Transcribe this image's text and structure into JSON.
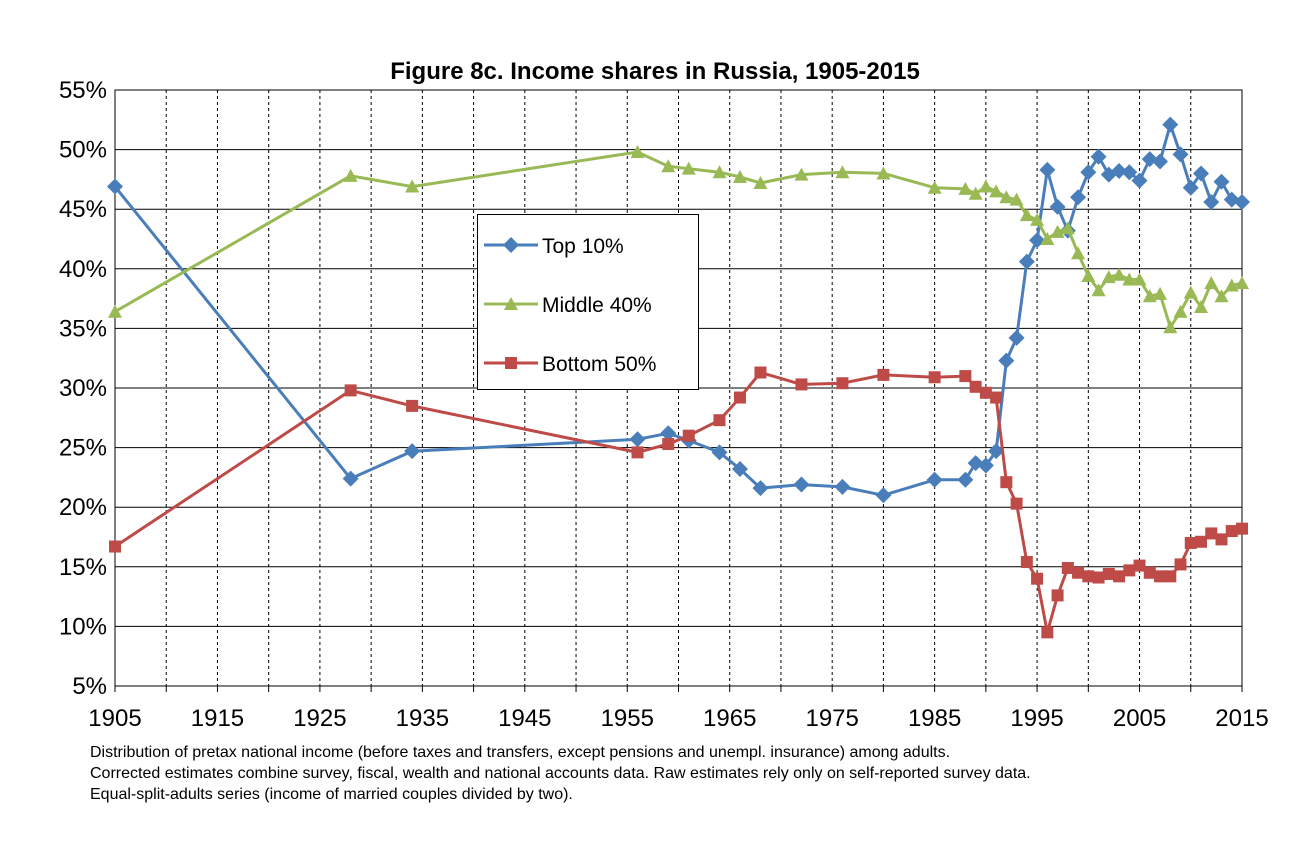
{
  "chart_data": {
    "type": "line",
    "title": "Figure 8c. Income shares in Russia, 1905-2015",
    "xlabel": "",
    "ylabel": "",
    "xlim": [
      1905,
      2015
    ],
    "ylim": [
      0.05,
      0.55
    ],
    "x_ticks": [
      "1905",
      "1915",
      "1925",
      "1935",
      "1945",
      "1955",
      "1965",
      "1975",
      "1985",
      "1995",
      "2005",
      "2015"
    ],
    "y_ticks": [
      "5%",
      "10%",
      "15%",
      "20%",
      "25%",
      "30%",
      "35%",
      "40%",
      "45%",
      "50%",
      "55%"
    ],
    "grid": true,
    "legend_position": "center",
    "series": [
      {
        "name": "Top 10%",
        "color": "#4a7ebb",
        "marker": "diamond",
        "points": [
          [
            1905,
            0.469
          ],
          [
            1928,
            0.224
          ],
          [
            1934,
            0.247
          ],
          [
            1956,
            0.257
          ],
          [
            1959,
            0.262
          ],
          [
            1961,
            0.256
          ],
          [
            1964,
            0.246
          ],
          [
            1966,
            0.232
          ],
          [
            1968,
            0.216
          ],
          [
            1972,
            0.219
          ],
          [
            1976,
            0.217
          ],
          [
            1980,
            0.21
          ],
          [
            1985,
            0.223
          ],
          [
            1988,
            0.223
          ],
          [
            1989,
            0.237
          ],
          [
            1990,
            0.235
          ],
          [
            1991,
            0.247
          ],
          [
            1992,
            0.323
          ],
          [
            1993,
            0.342
          ],
          [
            1994,
            0.406
          ],
          [
            1995,
            0.424
          ],
          [
            1996,
            0.483
          ],
          [
            1997,
            0.452
          ],
          [
            1998,
            0.432
          ],
          [
            1999,
            0.46
          ],
          [
            2000,
            0.481
          ],
          [
            2001,
            0.494
          ],
          [
            2002,
            0.479
          ],
          [
            2003,
            0.482
          ],
          [
            2004,
            0.481
          ],
          [
            2005,
            0.474
          ],
          [
            2006,
            0.492
          ],
          [
            2007,
            0.49
          ],
          [
            2008,
            0.521
          ],
          [
            2009,
            0.496
          ],
          [
            2010,
            0.468
          ],
          [
            2011,
            0.48
          ],
          [
            2012,
            0.456
          ],
          [
            2013,
            0.473
          ],
          [
            2014,
            0.458
          ],
          [
            2015,
            0.456
          ]
        ]
      },
      {
        "name": "Middle 40%",
        "color": "#98b954",
        "marker": "triangle",
        "points": [
          [
            1905,
            0.364
          ],
          [
            1928,
            0.478
          ],
          [
            1934,
            0.469
          ],
          [
            1956,
            0.498
          ],
          [
            1959,
            0.486
          ],
          [
            1961,
            0.484
          ],
          [
            1964,
            0.481
          ],
          [
            1966,
            0.477
          ],
          [
            1968,
            0.472
          ],
          [
            1972,
            0.479
          ],
          [
            1976,
            0.481
          ],
          [
            1980,
            0.48
          ],
          [
            1985,
            0.468
          ],
          [
            1988,
            0.467
          ],
          [
            1989,
            0.463
          ],
          [
            1990,
            0.469
          ],
          [
            1991,
            0.465
          ],
          [
            1992,
            0.46
          ],
          [
            1993,
            0.458
          ],
          [
            1994,
            0.445
          ],
          [
            1995,
            0.441
          ],
          [
            1996,
            0.425
          ],
          [
            1997,
            0.431
          ],
          [
            1998,
            0.434
          ],
          [
            1999,
            0.413
          ],
          [
            2000,
            0.394
          ],
          [
            2001,
            0.382
          ],
          [
            2002,
            0.393
          ],
          [
            2003,
            0.395
          ],
          [
            2004,
            0.391
          ],
          [
            2005,
            0.391
          ],
          [
            2006,
            0.377
          ],
          [
            2007,
            0.379
          ],
          [
            2008,
            0.351
          ],
          [
            2009,
            0.364
          ],
          [
            2010,
            0.38
          ],
          [
            2011,
            0.368
          ],
          [
            2012,
            0.388
          ],
          [
            2013,
            0.377
          ],
          [
            2014,
            0.386
          ],
          [
            2015,
            0.388
          ]
        ]
      },
      {
        "name": "Bottom 50%",
        "color": "#be4b48",
        "marker": "square",
        "points": [
          [
            1905,
            0.167
          ],
          [
            1928,
            0.298
          ],
          [
            1934,
            0.285
          ],
          [
            1956,
            0.246
          ],
          [
            1959,
            0.253
          ],
          [
            1961,
            0.26
          ],
          [
            1964,
            0.273
          ],
          [
            1966,
            0.292
          ],
          [
            1968,
            0.313
          ],
          [
            1972,
            0.303
          ],
          [
            1976,
            0.304
          ],
          [
            1980,
            0.311
          ],
          [
            1985,
            0.309
          ],
          [
            1988,
            0.31
          ],
          [
            1989,
            0.301
          ],
          [
            1990,
            0.296
          ],
          [
            1991,
            0.292
          ],
          [
            1992,
            0.221
          ],
          [
            1993,
            0.203
          ],
          [
            1994,
            0.154
          ],
          [
            1995,
            0.14
          ],
          [
            1996,
            0.095
          ],
          [
            1997,
            0.126
          ],
          [
            1998,
            0.149
          ],
          [
            1999,
            0.145
          ],
          [
            2000,
            0.142
          ],
          [
            2001,
            0.141
          ],
          [
            2002,
            0.144
          ],
          [
            2003,
            0.142
          ],
          [
            2004,
            0.147
          ],
          [
            2005,
            0.151
          ],
          [
            2006,
            0.145
          ],
          [
            2007,
            0.142
          ],
          [
            2008,
            0.142
          ],
          [
            2009,
            0.152
          ],
          [
            2010,
            0.17
          ],
          [
            2011,
            0.171
          ],
          [
            2012,
            0.178
          ],
          [
            2013,
            0.173
          ],
          [
            2014,
            0.18
          ],
          [
            2015,
            0.182
          ]
        ]
      }
    ]
  },
  "caption": [
    "Distribution of pretax national income (before taxes and transfers, except pensions and unempl. insurance) among adults.",
    "Corrected estimates combine survey, fiscal, wealth and national accounts data. Raw estimates rely only on self-reported survey data.",
    "Equal-split-adults series (income of married couples divided by two)."
  ]
}
